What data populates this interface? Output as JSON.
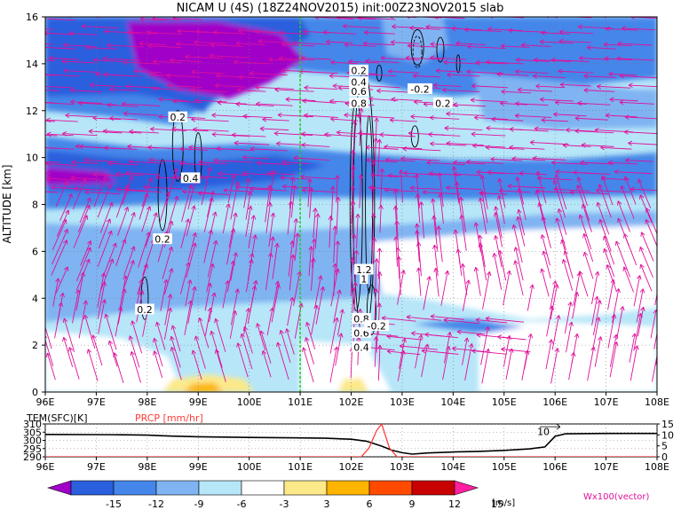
{
  "title": "NICAM U (4S) (18Z24NOV2015) init:00Z23NOV2015 slab",
  "chart_data": [
    {
      "type": "heatmap",
      "name": "zonal-wind-cross-section",
      "ylabel": "ALTITUDE [km]",
      "xlim": [
        96,
        108
      ],
      "ylim": [
        0,
        16
      ],
      "x_ticks": [
        "96E",
        "97E",
        "98E",
        "99E",
        "100E",
        "101E",
        "102E",
        "103E",
        "104E",
        "105E",
        "106E",
        "107E",
        "108E"
      ],
      "y_ticks": [
        "0",
        "2",
        "4",
        "6",
        "8",
        "10",
        "12",
        "14",
        "16"
      ],
      "grid": true,
      "dashed_line_x": 101,
      "contour_labels": [
        {
          "text": "0.2",
          "x": 98.6,
          "y": 11.7
        },
        {
          "text": "0.4",
          "x": 98.85,
          "y": 9.1
        },
        {
          "text": "0.2",
          "x": 98.3,
          "y": 6.5
        },
        {
          "text": "0.2",
          "x": 97.95,
          "y": 3.5
        },
        {
          "text": "0.2",
          "x": 102.15,
          "y": 13.7
        },
        {
          "text": "0.4",
          "x": 102.15,
          "y": 13.2
        },
        {
          "text": "0.6",
          "x": 102.15,
          "y": 12.8
        },
        {
          "text": "0.8",
          "x": 102.15,
          "y": 12.3
        },
        {
          "text": "-0.2",
          "x": 103.35,
          "y": 12.9
        },
        {
          "text": "0.2",
          "x": 103.8,
          "y": 12.3
        },
        {
          "text": "1.2",
          "x": 102.25,
          "y": 5.2
        },
        {
          "text": "1",
          "x": 102.25,
          "y": 4.8
        },
        {
          "text": "0.8",
          "x": 102.2,
          "y": 3.1
        },
        {
          "text": "0.6",
          "x": 102.2,
          "y": 2.5
        },
        {
          "text": "0.4",
          "x": 102.2,
          "y": 1.9
        },
        {
          "text": "-0.2",
          "x": 102.5,
          "y": 2.8
        }
      ]
    },
    {
      "type": "line",
      "name": "surface-temperature-and-precip",
      "label_left": "TEM(SFC)[K]",
      "label_right": "PRCP [mm/hr]",
      "x_ticks": [
        "96E",
        "97E",
        "98E",
        "99E",
        "100E",
        "101E",
        "102E",
        "103E",
        "104E",
        "105E",
        "106E",
        "107E",
        "108E"
      ],
      "y_left_ticks": [
        "310",
        "305",
        "300",
        "295",
        "290"
      ],
      "y_right_ticks": [
        "15",
        "10",
        "5",
        "0"
      ],
      "ylim_left": [
        290,
        310
      ],
      "ylim_right": [
        0,
        15
      ],
      "annotation": "10",
      "series": [
        {
          "name": "TEM(SFC)",
          "color": "#000000",
          "x": [
            96,
            97,
            97.5,
            98,
            98.3,
            98.5,
            99,
            99.5,
            100,
            100.5,
            101,
            101.5,
            102,
            102.3,
            102.6,
            102.8,
            103,
            103.2,
            103.5,
            104,
            104.5,
            105,
            105.5,
            105.8,
            106,
            106.2,
            107,
            108
          ],
          "values": [
            303.6,
            303.5,
            303.4,
            303.2,
            302.8,
            302.6,
            302.2,
            302.0,
            301.8,
            301.7,
            301.5,
            301.3,
            300.7,
            299.5,
            296.5,
            294.0,
            292.5,
            291.6,
            292.3,
            292.9,
            293.3,
            293.9,
            294.8,
            296.0,
            302.5,
            304.0,
            304.2,
            304.2
          ]
        },
        {
          "name": "PRCP",
          "color": "#ff3b3b",
          "x": [
            96,
            102.2,
            102.35,
            102.5,
            102.6,
            102.75,
            102.9,
            108
          ],
          "values": [
            0,
            0,
            4,
            12,
            15,
            4,
            0,
            0
          ]
        }
      ]
    }
  ],
  "colorbar": {
    "ticks": [
      "-15",
      "-12",
      "-9",
      "-6",
      "-3",
      "3",
      "6",
      "9",
      "12",
      "15"
    ],
    "colors": [
      "#a000c8",
      "#2a5fde",
      "#4486ea",
      "#7fb3f2",
      "#b6e6f8",
      "#ffffff",
      "#fce98a",
      "#ffb400",
      "#ff4a00",
      "#c80000",
      "#ff1fa0"
    ],
    "unit": "[m/s]",
    "vector_label": "Wx100(vector)"
  }
}
